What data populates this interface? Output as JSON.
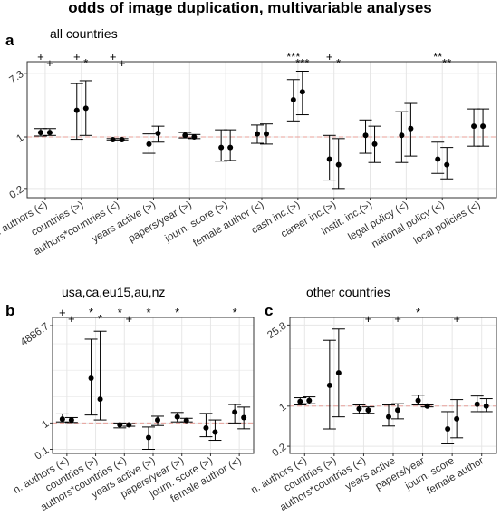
{
  "figure": {
    "title": "odds of image duplication, multivariable analyses"
  },
  "colors": {
    "panel_background": "#ffffff",
    "grid": "#e6e6e6",
    "border": "#333333",
    "reference_line": "#e8a09a",
    "mark": "#000000"
  },
  "chart_data": [
    {
      "id": "a",
      "letter": "a",
      "title": "all countries",
      "type": "scatter",
      "scale": "log",
      "reference": 1,
      "ylim": [
        0.15,
        10.5
      ],
      "yticks": [
        {
          "value": 0.2,
          "label": "0.2"
        },
        {
          "value": 1,
          "label": "1"
        },
        {
          "value": 7.3,
          "label": "7.3"
        }
      ],
      "grid": true,
      "categories": [
        "n. authors (<)",
        "countries (>)",
        "authors*countries (<)",
        "years active (>)",
        "papers/year (>)",
        "journ. score (>)",
        "female author (<)",
        "cash inc.(>)",
        "career inc.(>)",
        "instit. inc.(>)",
        "legal policy (<)",
        "national policy (<)",
        "local policies (<)"
      ],
      "series": [
        {
          "points": [
            {
              "est": 1.15,
              "lo": 1.03,
              "hi": 1.3
            },
            {
              "est": 2.3,
              "lo": 0.93,
              "hi": 5.3
            },
            {
              "est": 0.92,
              "lo": 0.9,
              "hi": 0.95
            },
            {
              "est": 0.8,
              "lo": 0.6,
              "hi": 1.1
            },
            {
              "est": 1.05,
              "lo": 0.97,
              "hi": 1.15
            },
            {
              "est": 0.72,
              "lo": 0.47,
              "hi": 1.25
            },
            {
              "est": 1.1,
              "lo": 0.82,
              "hi": 1.45
            },
            {
              "est": 3.2,
              "lo": 1.65,
              "hi": 6.0
            },
            {
              "est": 0.5,
              "lo": 0.26,
              "hi": 1.05
            },
            {
              "est": 1.05,
              "lo": 0.6,
              "hi": 1.7
            },
            {
              "est": 1.05,
              "lo": 0.45,
              "hi": 2.2
            },
            {
              "est": 0.5,
              "lo": 0.32,
              "hi": 0.85
            },
            {
              "est": 1.4,
              "lo": 0.75,
              "hi": 2.4
            }
          ]
        },
        {
          "points": [
            {
              "est": 1.15,
              "lo": 1.05,
              "hi": 1.3
            },
            {
              "est": 2.45,
              "lo": 1.05,
              "hi": 5.8
            },
            {
              "est": 0.92,
              "lo": 0.9,
              "hi": 0.95
            },
            {
              "est": 1.12,
              "lo": 0.85,
              "hi": 1.4
            },
            {
              "est": 1.0,
              "lo": 0.95,
              "hi": 1.08
            },
            {
              "est": 0.72,
              "lo": 0.48,
              "hi": 1.25
            },
            {
              "est": 1.1,
              "lo": 0.8,
              "hi": 1.5
            },
            {
              "est": 4.1,
              "lo": 2.0,
              "hi": 7.8
            },
            {
              "est": 0.42,
              "lo": 0.2,
              "hi": 0.95
            },
            {
              "est": 0.8,
              "lo": 0.45,
              "hi": 1.4
            },
            {
              "est": 1.3,
              "lo": 0.55,
              "hi": 2.85
            },
            {
              "est": 0.42,
              "lo": 0.27,
              "hi": 0.72
            },
            {
              "est": 1.4,
              "lo": 0.75,
              "hi": 2.4
            }
          ]
        }
      ],
      "annotations": [
        {
          "category": 0,
          "series": 0,
          "text": "+"
        },
        {
          "category": 0,
          "series": 1,
          "text": "+"
        },
        {
          "category": 1,
          "series": 0,
          "text": "+"
        },
        {
          "category": 1,
          "series": 1,
          "text": "*"
        },
        {
          "category": 2,
          "series": 0,
          "text": "+"
        },
        {
          "category": 2,
          "series": 1,
          "text": "+"
        },
        {
          "category": 7,
          "series": 0,
          "text": "***"
        },
        {
          "category": 7,
          "series": 1,
          "text": "***"
        },
        {
          "category": 8,
          "series": 0,
          "text": "+"
        },
        {
          "category": 8,
          "series": 1,
          "text": "*"
        },
        {
          "category": 11,
          "series": 0,
          "text": "**"
        },
        {
          "category": 11,
          "series": 1,
          "text": "**"
        }
      ]
    },
    {
      "id": "b",
      "letter": "b",
      "title": "usa,ca,eu15,au,nz",
      "type": "scatter",
      "scale": "log",
      "reference": 1,
      "ylim": [
        0.07,
        10000
      ],
      "yticks": [
        {
          "value": 0.1,
          "label": "0.1"
        },
        {
          "value": 1,
          "label": "1"
        },
        {
          "value": 4886.7,
          "label": "4886.7"
        }
      ],
      "grid": true,
      "categories": [
        "n. authors (<)",
        "countries (>)",
        "authors*countries (<)",
        "years active (>)",
        "papers/year (>)",
        "journ. score (>)",
        "female author (<)"
      ],
      "series": [
        {
          "points": [
            {
              "est": 1.4,
              "lo": 1.1,
              "hi": 2.2
            },
            {
              "est": 50,
              "lo": 2.0,
              "hi": 1500
            },
            {
              "est": 0.85,
              "lo": 0.65,
              "hi": 1.0
            },
            {
              "est": 0.28,
              "lo": 0.1,
              "hi": 0.7
            },
            {
              "est": 1.7,
              "lo": 1.1,
              "hi": 2.5
            },
            {
              "est": 0.65,
              "lo": 0.3,
              "hi": 2.3
            },
            {
              "est": 2.6,
              "lo": 1.0,
              "hi": 5.0
            }
          ]
        },
        {
          "points": [
            {
              "est": 1.3,
              "lo": 1.05,
              "hi": 1.6
            },
            {
              "est": 8,
              "lo": 1.3,
              "hi": 3000
            },
            {
              "est": 0.85,
              "lo": 0.75,
              "hi": 0.95
            },
            {
              "est": 1.3,
              "lo": 0.8,
              "hi": 1.8
            },
            {
              "est": 1.25,
              "lo": 1.1,
              "hi": 1.5
            },
            {
              "est": 0.45,
              "lo": 0.22,
              "hi": 1.3
            },
            {
              "est": 1.6,
              "lo": 0.6,
              "hi": 4.0
            }
          ]
        }
      ],
      "annotations": [
        {
          "category": 0,
          "series": 0,
          "text": "+"
        },
        {
          "category": 0,
          "series": 1,
          "text": "+"
        },
        {
          "category": 1,
          "series": 0,
          "text": "*"
        },
        {
          "category": 1,
          "series": 1,
          "text": "*"
        },
        {
          "category": 2,
          "series": 0,
          "text": "*"
        },
        {
          "category": 2,
          "series": 1,
          "text": "+"
        },
        {
          "category": 3,
          "series": 0,
          "text": "*"
        },
        {
          "category": 4,
          "series": 0,
          "text": "*"
        },
        {
          "category": 6,
          "series": 0,
          "text": "*"
        }
      ]
    },
    {
      "id": "c",
      "letter": "c",
      "title": "other countries",
      "type": "scatter",
      "scale": "log",
      "reference": 1,
      "ylim": [
        0.15,
        35
      ],
      "yticks": [
        {
          "value": 0.2,
          "label": "0.2"
        },
        {
          "value": 1,
          "label": "1"
        },
        {
          "value": 25.8,
          "label": "25.8"
        }
      ],
      "grid": true,
      "categories": [
        "n. authors (<)",
        "countries (>)",
        "authors*countries (<)",
        "years active",
        "papers/year",
        "journ. score",
        "female author"
      ],
      "series": [
        {
          "points": [
            {
              "est": 1.2,
              "lo": 1.05,
              "hi": 1.4
            },
            {
              "est": 2.3,
              "lo": 0.4,
              "hi": 14
            },
            {
              "est": 0.9,
              "lo": 0.75,
              "hi": 1.05
            },
            {
              "est": 0.65,
              "lo": 0.45,
              "hi": 1.05
            },
            {
              "est": 1.25,
              "lo": 1.05,
              "hi": 1.55
            },
            {
              "est": 0.4,
              "lo": 0.22,
              "hi": 0.8
            },
            {
              "est": 1.08,
              "lo": 0.8,
              "hi": 1.5
            }
          ]
        },
        {
          "points": [
            {
              "est": 1.25,
              "lo": 1.1,
              "hi": 1.45
            },
            {
              "est": 3.8,
              "lo": 0.65,
              "hi": 22
            },
            {
              "est": 0.85,
              "lo": 0.75,
              "hi": 0.97
            },
            {
              "est": 0.85,
              "lo": 0.6,
              "hi": 1.1
            },
            {
              "est": 1.0,
              "lo": 0.97,
              "hi": 1.05
            },
            {
              "est": 0.6,
              "lo": 0.28,
              "hi": 1.3
            },
            {
              "est": 1.0,
              "lo": 0.8,
              "hi": 1.35
            }
          ]
        }
      ],
      "annotations": [
        {
          "category": 2,
          "series": 1,
          "text": "+"
        },
        {
          "category": 3,
          "series": 1,
          "text": "+"
        },
        {
          "category": 4,
          "series": 0,
          "text": "*"
        },
        {
          "category": 5,
          "series": 1,
          "text": "+"
        }
      ]
    }
  ]
}
